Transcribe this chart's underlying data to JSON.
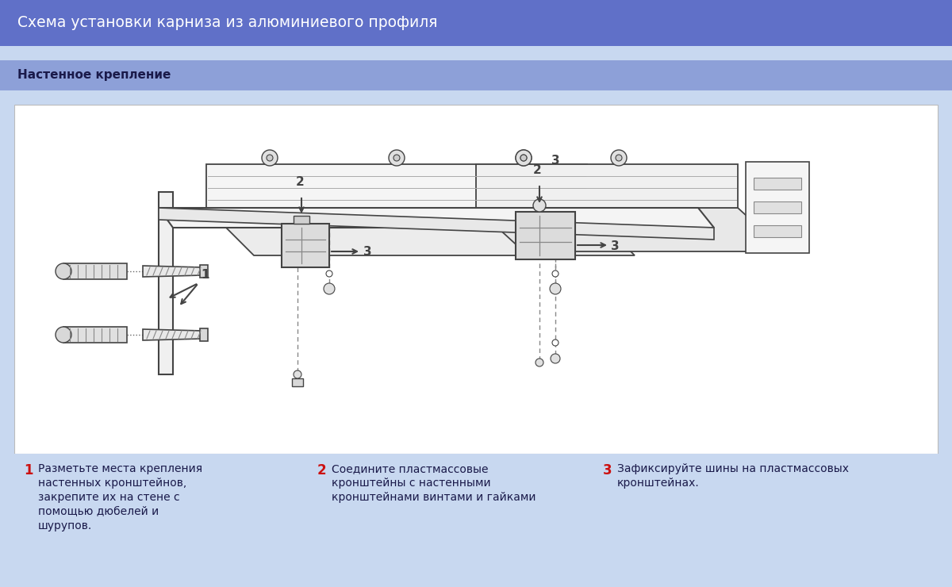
{
  "title": "Схема установки карниза из алюминиевого профиля",
  "subtitle": "Настенное крепление",
  "header_color": "#6070c8",
  "subtitle_bg_color": "#8da0d8",
  "body_bg_color": "#c8d8f0",
  "diagram_bg_color": "#f0f0f0",
  "diagram_inner_bg": "#ffffff",
  "title_color": "#ffffff",
  "subtitle_color": "#1a1a4a",
  "step_number_color": "#cc1111",
  "step_text_color": "#1a1a4a",
  "footer_bg_color": "#c8d8f0",
  "line_color": "#444444",
  "fill_light": "#e8e8e8",
  "fill_mid": "#d0d0d0",
  "steps": [
    {
      "number": "1",
      "lines": [
        "Разметьте места крепления",
        "настенных кронштейнов,",
        "закрепите их на стене с",
        "помощью дюбелей и",
        "шурупов."
      ]
    },
    {
      "number": "2",
      "lines": [
        "Соедините пластмассовые",
        "кронштейны с настенными",
        "кронштейнами винтами и гайками"
      ]
    },
    {
      "number": "3",
      "lines": [
        "Зафиксируйте шины на пластмассовых",
        "кронштейнах."
      ]
    }
  ]
}
